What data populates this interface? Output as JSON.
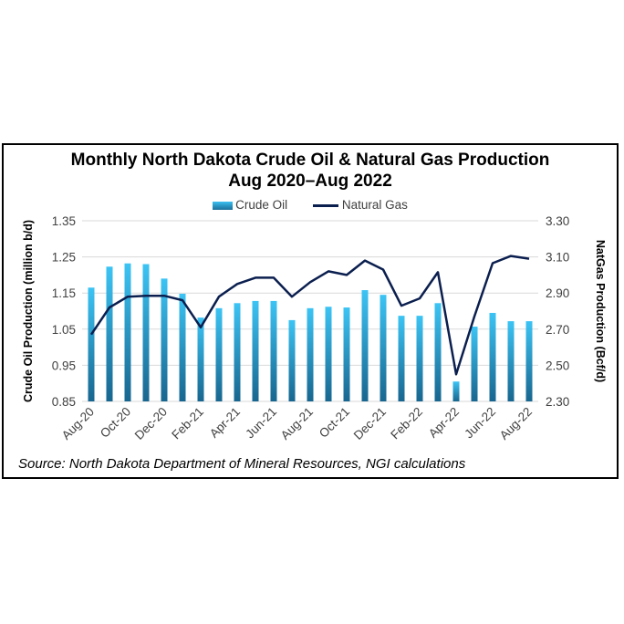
{
  "chart_data": {
    "type": "bar+line",
    "title": "Monthly North Dakota Crude Oil & Natural Gas Production",
    "subtitle": "Aug 2020–Aug 2022",
    "ylabel_left": "Crude Oil Production (million b/d)",
    "ylabel_right": "NatGas Production (Bcf/d)",
    "ylim_left": [
      0.85,
      1.35
    ],
    "yticks_left": [
      "0.85",
      "0.95",
      "1.05",
      "1.15",
      "1.25",
      "1.35"
    ],
    "ylim_right": [
      2.3,
      3.3
    ],
    "yticks_right": [
      "2.30",
      "2.50",
      "2.70",
      "2.90",
      "3.10",
      "3.30"
    ],
    "grid": true,
    "legend_position": "top",
    "categories": [
      "Aug-20",
      "Sep-20",
      "Oct-20",
      "Nov-20",
      "Dec-20",
      "Jan-21",
      "Feb-21",
      "Mar-21",
      "Apr-21",
      "May-21",
      "Jun-21",
      "Jul-21",
      "Aug-21",
      "Sep-21",
      "Oct-21",
      "Nov-21",
      "Dec-21",
      "Jan-22",
      "Feb-22",
      "Mar-22",
      "Apr-22",
      "May-22",
      "Jun-22",
      "Jul-22",
      "Aug-22"
    ],
    "xtick_labels": [
      "Aug-20",
      "Oct-20",
      "Dec-20",
      "Feb-21",
      "Apr-21",
      "Jun-21",
      "Aug-21",
      "Oct-21",
      "Dec-21",
      "Feb-22",
      "Apr-22",
      "Jun-22",
      "Aug-22"
    ],
    "series": [
      {
        "name": "Crude Oil",
        "type": "bar",
        "axis": "left",
        "color": "#29a8dc",
        "values": [
          1.165,
          1.223,
          1.232,
          1.23,
          1.19,
          1.148,
          1.082,
          1.108,
          1.122,
          1.128,
          1.128,
          1.075,
          1.108,
          1.112,
          1.11,
          1.158,
          1.145,
          1.087,
          1.087,
          1.122,
          0.905,
          1.057,
          1.095,
          1.072,
          1.072
        ]
      },
      {
        "name": "Natural Gas",
        "type": "line",
        "axis": "right",
        "color": "#0b1f4f",
        "values": [
          2.67,
          2.82,
          2.88,
          2.885,
          2.885,
          2.86,
          2.71,
          2.88,
          2.95,
          2.985,
          2.985,
          2.88,
          2.96,
          3.02,
          3.0,
          3.08,
          3.03,
          2.83,
          2.87,
          3.015,
          2.45,
          2.77,
          3.065,
          3.105,
          3.09
        ]
      }
    ],
    "source": "Source: North Dakota Department of Mineral Resources, NGI calculations"
  }
}
